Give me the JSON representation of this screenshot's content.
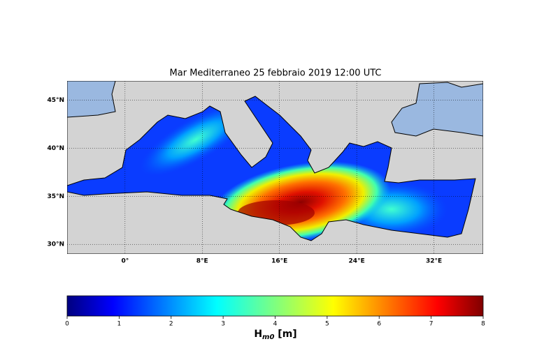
{
  "title": "Mar Mediterraneo 25 febbraio 2019  12:00 UTC",
  "map": {
    "lonlim": [
      -6,
      37.1
    ],
    "latlim": [
      29,
      47
    ],
    "lon_ticks": [
      {
        "value": 0,
        "label": "0°"
      },
      {
        "value": 8,
        "label": "8°E"
      },
      {
        "value": 16,
        "label": "16°E"
      },
      {
        "value": 24,
        "label": "24°E"
      },
      {
        "value": 32,
        "label": "32°E"
      }
    ],
    "lat_ticks": [
      {
        "value": 30,
        "label": "30°N"
      },
      {
        "value": 35,
        "label": "35°N"
      },
      {
        "value": 40,
        "label": "40°N"
      },
      {
        "value": 45,
        "label": "45°N"
      }
    ]
  },
  "colorbar": {
    "range": [
      0,
      8
    ],
    "ticks": [
      0,
      1,
      2,
      3,
      4,
      5,
      6,
      7,
      8
    ],
    "label": {
      "symbol": "H",
      "subscript": "m0",
      "unit": "[m]"
    }
  }
}
